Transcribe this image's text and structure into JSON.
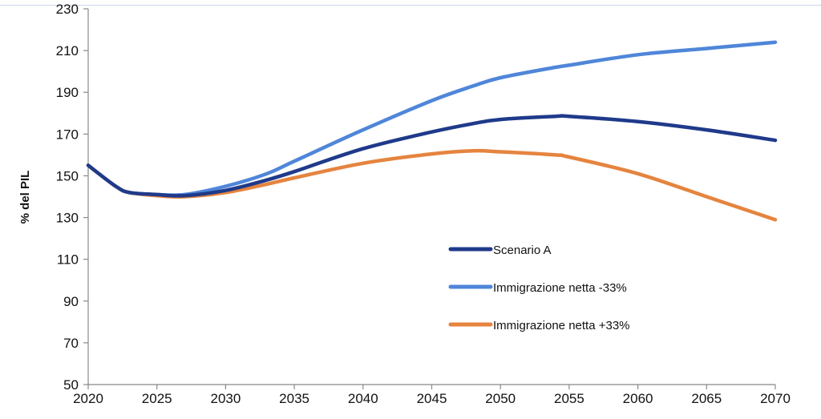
{
  "chart_data": {
    "type": "line",
    "title": "",
    "xlabel": "",
    "ylabel": "% del PIL",
    "xlim": [
      2020,
      2070
    ],
    "ylim": [
      50,
      230
    ],
    "x_ticks": [
      "2020",
      "2025",
      "2030",
      "2035",
      "2040",
      "2045",
      "2050",
      "2055",
      "2060",
      "2065",
      "2070"
    ],
    "y_ticks": [
      "50",
      "70",
      "90",
      "110",
      "130",
      "150",
      "170",
      "190",
      "210",
      "230"
    ],
    "grid": false,
    "legend_position": "center-right",
    "x": [
      2020,
      2022,
      2023,
      2025,
      2027,
      2030,
      2033,
      2035,
      2040,
      2045,
      2048,
      2050,
      2054,
      2055,
      2060,
      2065,
      2070
    ],
    "series": [
      {
        "name": "Scenario A",
        "color": "#1f3a8a",
        "values": [
          155,
          145,
          142,
          141,
          140.5,
          143,
          148,
          152,
          163,
          171,
          175,
          177,
          178.5,
          178.5,
          176,
          172,
          167
        ]
      },
      {
        "name": "Immigrazione netta -33%",
        "color": "#4f86d9",
        "values": [
          155,
          145,
          142,
          141,
          141,
          145,
          151,
          157,
          172,
          186,
          193,
          197,
          202,
          203,
          208,
          211,
          214
        ]
      },
      {
        "name": "Immigrazione netta +33%",
        "color": "#e5843f",
        "values": [
          155,
          145,
          142,
          140.5,
          140,
          142,
          146,
          149,
          156,
          160.5,
          162,
          161.5,
          160,
          159,
          151,
          140,
          129
        ]
      }
    ]
  }
}
